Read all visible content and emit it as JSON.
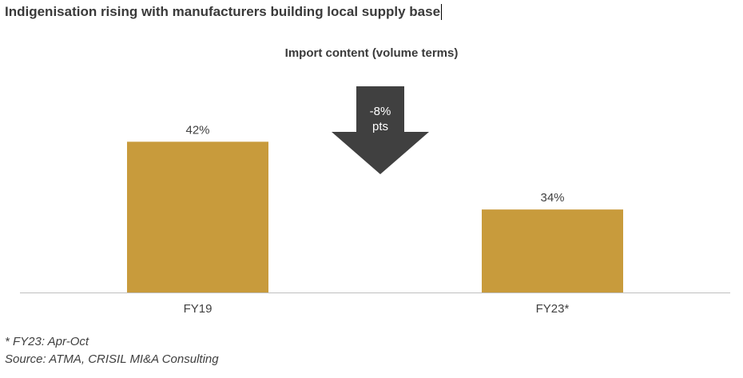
{
  "title": "Indigenisation rising with manufacturers building local supply base",
  "chart_data": {
    "type": "bar",
    "title": "Import content (volume terms)",
    "categories": [
      "FY19",
      "FY23*"
    ],
    "values": [
      42,
      34
    ],
    "data_labels": [
      "42%",
      "34%"
    ],
    "ylim": [
      24.2,
      49.3
    ],
    "bar_color": "#C89B3C",
    "grid": false,
    "annotation": {
      "line1": "-8%",
      "line2": "pts",
      "color": "#404040"
    }
  },
  "footnote": "* FY23: Apr-Oct",
  "source": "Source: ATMA, CRISIL MI&A Consulting"
}
